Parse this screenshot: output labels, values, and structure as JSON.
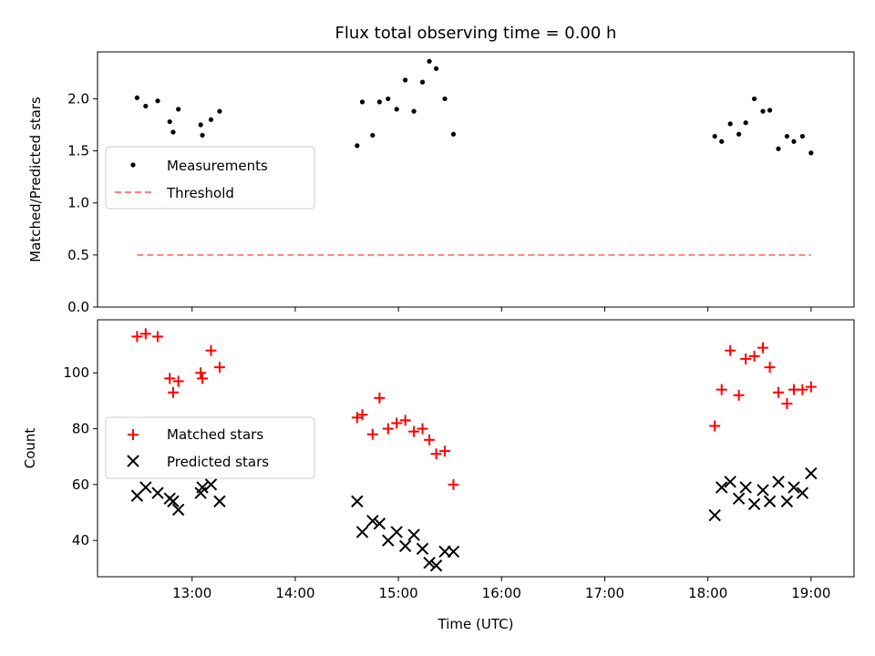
{
  "chart_data": [
    {
      "type": "scatter",
      "title": "Flux total observing time = 0.00 h",
      "xlabel": "",
      "ylabel": "Matched/Predicted stars",
      "ylim": [
        0,
        2.45
      ],
      "yticks": [
        0.0,
        0.5,
        1.0,
        1.5,
        2.0
      ],
      "ytick_labels": [
        "0.0",
        "0.5",
        "1.0",
        "1.5",
        "2.0"
      ],
      "legend": "center-left",
      "grid": false,
      "series": [
        {
          "name": "Measurements",
          "color": "#000000",
          "marker": "dot",
          "x": [
            "12:28",
            "12:33",
            "12:40",
            "12:47",
            "12:49",
            "12:52",
            "13:05",
            "13:06",
            "13:11",
            "13:16",
            "14:36",
            "14:39",
            "14:45",
            "14:49",
            "14:54",
            "14:59",
            "15:04",
            "15:09",
            "15:14",
            "15:18",
            "15:22",
            "15:27",
            "15:32",
            "18:04",
            "18:08",
            "18:13",
            "18:18",
            "18:22",
            "18:27",
            "18:32",
            "18:36",
            "18:41",
            "18:46",
            "18:50",
            "18:55",
            "19:00"
          ],
          "y": [
            2.01,
            1.93,
            1.98,
            1.78,
            1.68,
            1.9,
            1.75,
            1.65,
            1.8,
            1.88,
            1.55,
            1.97,
            1.65,
            1.97,
            2.0,
            1.9,
            2.18,
            1.88,
            2.16,
            2.36,
            2.29,
            2.0,
            1.66,
            1.64,
            1.59,
            1.76,
            1.66,
            1.77,
            2.0,
            1.88,
            1.89,
            1.52,
            1.64,
            1.59,
            1.64,
            1.48
          ]
        },
        {
          "name": "Threshold",
          "color": "#ff7f7f",
          "style": "dashed",
          "x": [
            "12:28",
            "19:00"
          ],
          "y": [
            0.5,
            0.5
          ]
        }
      ]
    },
    {
      "type": "scatter",
      "title": "",
      "xlabel": "Time (UTC)",
      "ylabel": "Count",
      "ylim": [
        27,
        119
      ],
      "yticks": [
        40,
        60,
        80,
        100
      ],
      "ytick_labels": [
        "40",
        "60",
        "80",
        "100"
      ],
      "xlim": [
        "12:05",
        "19:25"
      ],
      "xticks": [
        "13:00",
        "14:00",
        "15:00",
        "16:00",
        "17:00",
        "18:00",
        "19:00"
      ],
      "xtick_labels": [
        "13:00",
        "14:00",
        "15:00",
        "16:00",
        "17:00",
        "18:00",
        "19:00"
      ],
      "legend": "center-left",
      "grid": false,
      "series": [
        {
          "name": "Matched stars",
          "color": "#ff0000",
          "marker": "plus",
          "x": [
            "12:28",
            "12:33",
            "12:40",
            "12:47",
            "12:49",
            "12:52",
            "13:05",
            "13:06",
            "13:11",
            "13:16",
            "14:36",
            "14:39",
            "14:45",
            "14:49",
            "14:54",
            "14:59",
            "15:04",
            "15:09",
            "15:14",
            "15:18",
            "15:22",
            "15:27",
            "15:32",
            "18:04",
            "18:08",
            "18:13",
            "18:18",
            "18:22",
            "18:27",
            "18:32",
            "18:36",
            "18:41",
            "18:46",
            "18:50",
            "18:55",
            "19:00"
          ],
          "y": [
            113,
            114,
            113,
            98,
            93,
            97,
            100,
            98,
            108,
            102,
            84,
            85,
            78,
            91,
            80,
            82,
            83,
            79,
            80,
            76,
            71,
            72,
            60,
            81,
            94,
            108,
            92,
            105,
            106,
            109,
            102,
            93,
            89,
            94,
            94,
            95
          ]
        },
        {
          "name": "Predicted stars",
          "color": "#000000",
          "marker": "x",
          "x": [
            "12:28",
            "12:33",
            "12:40",
            "12:47",
            "12:49",
            "12:52",
            "13:05",
            "13:06",
            "13:11",
            "13:16",
            "14:36",
            "14:39",
            "14:45",
            "14:49",
            "14:54",
            "14:59",
            "15:04",
            "15:09",
            "15:14",
            "15:18",
            "15:22",
            "15:27",
            "15:32",
            "18:04",
            "18:08",
            "18:13",
            "18:18",
            "18:22",
            "18:27",
            "18:32",
            "18:36",
            "18:41",
            "18:46",
            "18:50",
            "18:55",
            "19:00"
          ],
          "y": [
            56,
            59,
            57,
            55,
            54,
            51,
            57,
            59,
            60,
            54,
            54,
            43,
            47,
            46,
            40,
            43,
            38,
            42,
            37,
            32,
            31,
            36,
            36,
            49,
            59,
            61,
            55,
            59,
            53,
            58,
            54,
            61,
            54,
            59,
            57,
            64
          ]
        }
      ]
    }
  ]
}
